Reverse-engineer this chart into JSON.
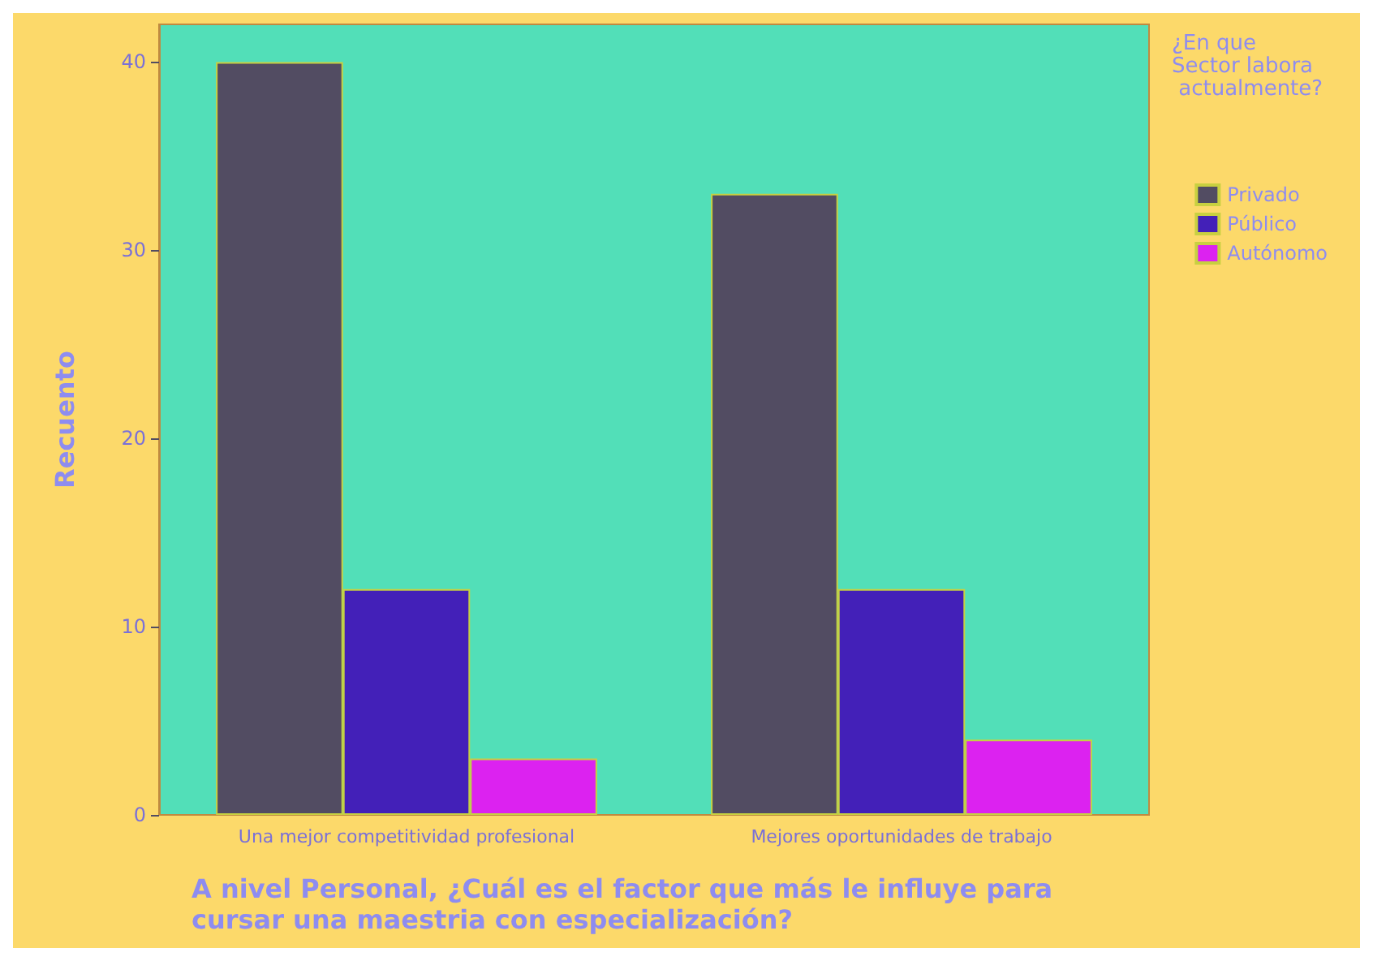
{
  "chart_data": {
    "type": "bar",
    "xlabel": "A nivel Personal, ¿Cuál es el factor que más le influye para cursar una maestria con especialización?",
    "ylabel": "Recuento",
    "legend_title": "¿En que Sector labora actualmente?",
    "categories": [
      "Una mejor competitividad profesional",
      "Mejores oportunidades de trabajo"
    ],
    "series": [
      {
        "name": "Privado",
        "color": "#524c62",
        "values": [
          40,
          33
        ]
      },
      {
        "name": "Público",
        "color": "#4320b8",
        "values": [
          12,
          12
        ]
      },
      {
        "name": "Autónomo",
        "color": "#dc22f0",
        "values": [
          3,
          4
        ]
      }
    ],
    "ylim": [
      0,
      42
    ],
    "yticks": [
      0,
      10,
      20,
      30,
      40
    ],
    "grid": false,
    "legend": "right"
  }
}
